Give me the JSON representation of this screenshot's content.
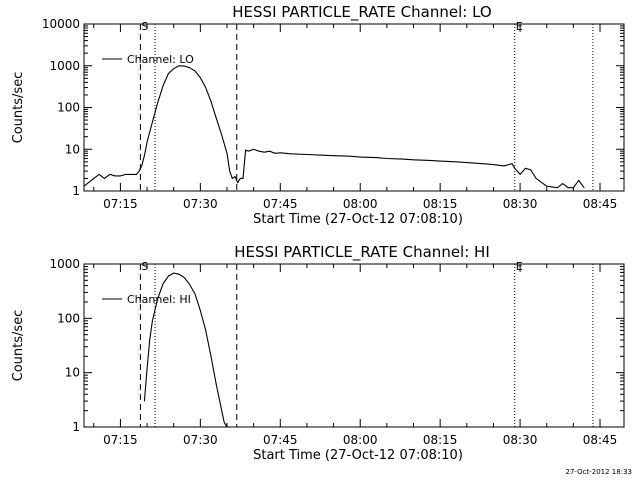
{
  "timestamp": "27-Oct-2012 18:33",
  "chart_data": [
    {
      "type": "line",
      "title": "HESSI PARTICLE_RATE Channel: LO",
      "xlabel": "Start Time (27-Oct-12 07:08:10)",
      "ylabel": "Counts/sec",
      "y_scale": "log",
      "ylim": [
        1,
        10000
      ],
      "xlim": [
        "07:08:10",
        "08:49:30"
      ],
      "x_ticks": [
        "07:15",
        "07:30",
        "07:45",
        "08:00",
        "08:15",
        "08:30",
        "08:45"
      ],
      "y_ticks": [
        "1",
        "10",
        "100",
        "1000",
        "10000"
      ],
      "legend": "top-left",
      "series": [
        {
          "name": "Channel: LO",
          "x": [
            "07:08:10",
            "07:10:00",
            "07:11:00",
            "07:12:00",
            "07:13:00",
            "07:14:00",
            "07:15:00",
            "07:16:00",
            "07:17:00",
            "07:18:00",
            "07:18:30",
            "07:19:00",
            "07:19:30",
            "07:20:00",
            "07:21:00",
            "07:22:00",
            "07:23:00",
            "07:24:00",
            "07:25:00",
            "07:26:00",
            "07:27:00",
            "07:28:00",
            "07:29:00",
            "07:30:00",
            "07:31:00",
            "07:32:00",
            "07:33:00",
            "07:34:00",
            "07:35:00",
            "07:35:30",
            "07:36:00",
            "07:36:30",
            "07:37:00",
            "07:37:30",
            "07:38:00",
            "07:38:30",
            "07:39:00",
            "07:40:00",
            "07:41:00",
            "07:42:00",
            "07:43:00",
            "07:44:00",
            "07:45:00",
            "07:47:00",
            "07:50:00",
            "07:53:00",
            "07:55:00",
            "07:58:00",
            "08:00:00",
            "08:03:00",
            "08:05:00",
            "08:08:00",
            "08:10:00",
            "08:13:00",
            "08:15:00",
            "08:18:00",
            "08:20:00",
            "08:23:00",
            "08:25:00",
            "08:27:00",
            "08:28:30",
            "08:29:00",
            "08:30:00",
            "08:31:00",
            "08:32:00",
            "08:33:00",
            "08:35:00",
            "08:37:00",
            "08:38:00",
            "08:39:00",
            "08:40:00",
            "08:41:00",
            "08:42:00"
          ],
          "values": [
            1.3,
            2,
            2.5,
            2,
            2.5,
            2.3,
            2.3,
            2.5,
            2.5,
            2.5,
            3,
            4,
            7,
            15,
            45,
            130,
            330,
            650,
            850,
            1000,
            980,
            900,
            750,
            520,
            300,
            140,
            55,
            22,
            8,
            3,
            2,
            2.2,
            1.6,
            2,
            2,
            9.5,
            9,
            10,
            9,
            8.5,
            9,
            8,
            8.2,
            7.8,
            7.5,
            7.2,
            7,
            6.8,
            6.5,
            6.3,
            6,
            5.8,
            5.6,
            5.4,
            5.2,
            5,
            4.8,
            4.5,
            4.3,
            4,
            4.5,
            3.5,
            2.5,
            3.5,
            3.2,
            2,
            1.3,
            1.2,
            1.5,
            1.2,
            1.2,
            1.8,
            1.2
          ]
        }
      ],
      "annotations": [
        {
          "label": "S",
          "time": "07:18:45",
          "style": "dashed"
        },
        {
          "label": "",
          "time": "07:36:50",
          "style": "dashed"
        },
        {
          "label": "",
          "time": "07:21:30",
          "style": "dotted"
        },
        {
          "label": "E",
          "time": "08:29:00",
          "style": "dotted"
        },
        {
          "label": "",
          "time": "08:43:40",
          "style": "dotted"
        }
      ]
    },
    {
      "type": "line",
      "title": "HESSI PARTICLE_RATE Channel: HI",
      "xlabel": "Start Time (27-Oct-12 07:08:10)",
      "ylabel": "Counts/sec",
      "y_scale": "log",
      "ylim": [
        1,
        1000
      ],
      "xlim": [
        "07:08:10",
        "08:49:30"
      ],
      "x_ticks": [
        "07:15",
        "07:30",
        "07:45",
        "08:00",
        "08:15",
        "08:30",
        "08:45"
      ],
      "y_ticks": [
        "1",
        "10",
        "100",
        "1000"
      ],
      "legend": "top-left",
      "series": [
        {
          "name": "Channel: HI",
          "x": [
            "07:19:30",
            "07:20:00",
            "07:20:30",
            "07:21:00",
            "07:22:00",
            "07:23:00",
            "07:24:00",
            "07:25:00",
            "07:26:00",
            "07:27:00",
            "07:28:00",
            "07:29:00",
            "07:30:00",
            "07:31:00",
            "07:32:00",
            "07:33:00",
            "07:34:00",
            "07:34:30",
            "07:35:00"
          ],
          "values": [
            3,
            12,
            40,
            90,
            230,
            430,
            600,
            680,
            650,
            560,
            420,
            280,
            140,
            60,
            20,
            6,
            2,
            1.2,
            1
          ]
        }
      ],
      "annotations": [
        {
          "label": "S",
          "time": "07:18:45",
          "style": "dashed"
        },
        {
          "label": "",
          "time": "07:36:50",
          "style": "dashed"
        },
        {
          "label": "",
          "time": "07:21:30",
          "style": "dotted"
        },
        {
          "label": "E",
          "time": "08:29:00",
          "style": "dotted"
        },
        {
          "label": "",
          "time": "08:43:40",
          "style": "dotted"
        }
      ]
    }
  ]
}
